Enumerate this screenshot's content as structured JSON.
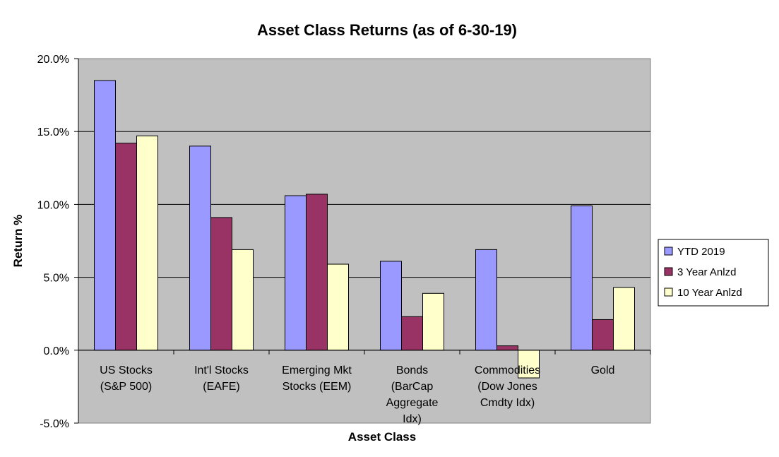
{
  "chart_data": {
    "type": "bar",
    "title": "Asset Class Returns (as of 6-30-19)",
    "xlabel": "Asset Class",
    "ylabel": "Return %",
    "ylim": [
      -5.0,
      20.0
    ],
    "yticks": [
      "20.0%",
      "15.0%",
      "10.0%",
      "5.0%",
      "0.0%",
      "-5.0%"
    ],
    "ytick_values": [
      20,
      15,
      10,
      5,
      0,
      -5
    ],
    "grid": true,
    "legend_position": "right",
    "categories": [
      [
        "US Stocks",
        "(S&P 500)"
      ],
      [
        "Int'l Stocks",
        "(EAFE)"
      ],
      [
        "Emerging Mkt",
        "Stocks (EEM)"
      ],
      [
        "Bonds",
        "(BarCap",
        "Aggregate",
        "Idx)"
      ],
      [
        "Commodities",
        "(Dow Jones",
        "Cmdty Idx)"
      ],
      [
        "Gold"
      ]
    ],
    "series": [
      {
        "name": "YTD 2019",
        "color": "#9999ff",
        "values": [
          18.5,
          14.0,
          10.6,
          6.1,
          6.9,
          9.9
        ]
      },
      {
        "name": "3 Year Anlzd",
        "color": "#993366",
        "values": [
          14.2,
          9.1,
          10.7,
          2.3,
          0.3,
          2.1
        ]
      },
      {
        "name": "10 Year Anlzd",
        "color": "#ffffcc",
        "values": [
          14.7,
          6.9,
          5.9,
          3.9,
          -1.9,
          4.3
        ]
      }
    ],
    "plot_background": "#c0c0c0"
  }
}
